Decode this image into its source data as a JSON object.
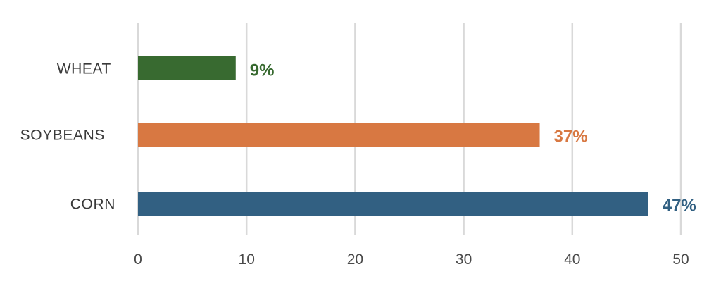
{
  "chart_data": {
    "type": "bar",
    "orientation": "horizontal",
    "categories": [
      "WHEAT",
      "SOYBEANS",
      "CORN"
    ],
    "values": [
      9,
      37,
      47
    ],
    "value_labels": [
      "9%",
      "37%",
      "47%"
    ],
    "colors": [
      "#386a30",
      "#d87842",
      "#326082"
    ],
    "xlim": [
      0,
      50
    ],
    "xticks": [
      0,
      10,
      20,
      30,
      40,
      50
    ],
    "xtick_labels": [
      "0",
      "10",
      "20",
      "30",
      "40",
      "50"
    ],
    "grid": "vertical",
    "legend": "none"
  }
}
